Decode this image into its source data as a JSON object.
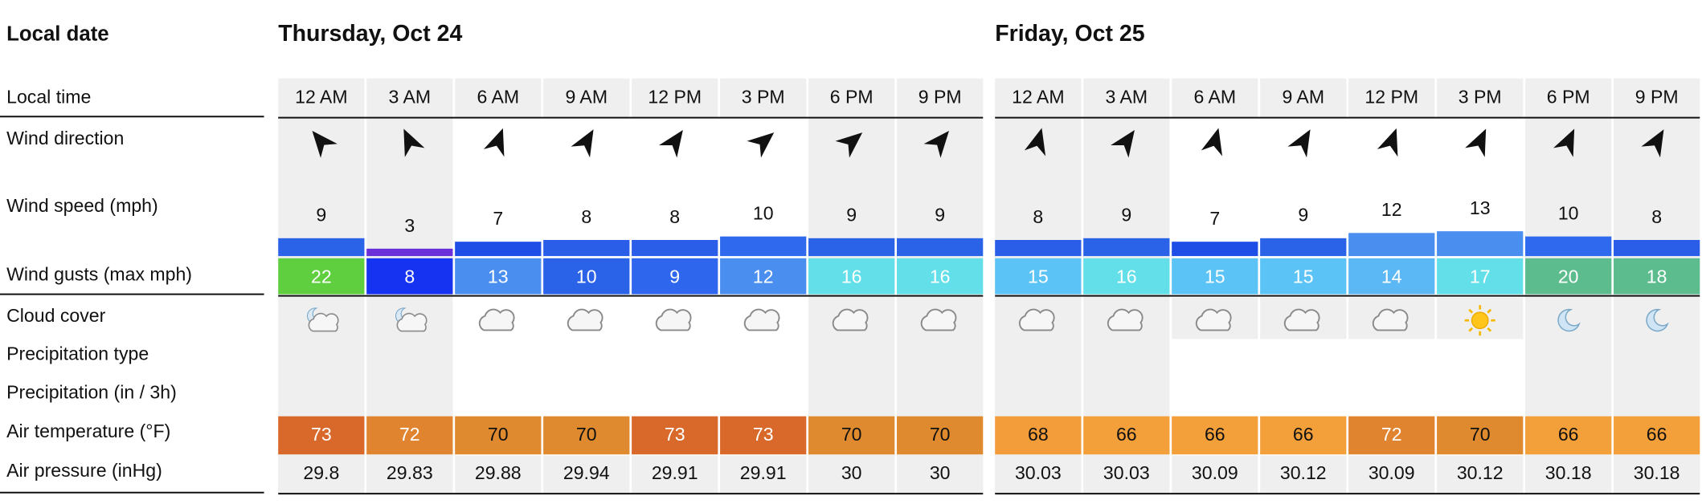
{
  "labels": {
    "local_date": "Local date",
    "local_time": "Local time",
    "wind_direction": "Wind direction",
    "wind_speed": "Wind speed (mph)",
    "wind_gusts": "Wind gusts (max mph)",
    "cloud_cover": "Cloud cover",
    "precip_type": "Precipitation type",
    "precip": "Precipitation (in / 3h)",
    "temperature": "Air temperature (°F)",
    "pressure": "Air pressure (inHg)"
  },
  "days": [
    {
      "date": "Thursday, Oct 24",
      "hours": [
        {
          "time": "12 AM",
          "wind_direction": 320,
          "wind_speed": 9,
          "wind_speed_color": "#2a62e8",
          "wind_gusts": 22,
          "gust_color": "#5fcf3f",
          "cloud_cover": "partly-cloudy-night",
          "temperature": 73,
          "temperature_color": "#d9692a",
          "pressure": 29.8
        },
        {
          "time": "3 AM",
          "wind_direction": 335,
          "wind_speed": 3,
          "wind_speed_color": "#6a2fd8",
          "wind_gusts": 8,
          "gust_color": "#1533f0",
          "cloud_cover": "partly-cloudy-night",
          "temperature": 72,
          "temperature_color": "#e08430",
          "pressure": 29.83
        },
        {
          "time": "6 AM",
          "wind_direction": 20,
          "wind_speed": 7,
          "wind_speed_color": "#1f4ee6",
          "wind_gusts": 13,
          "gust_color": "#4a8ff0",
          "cloud_cover": "cloudy",
          "temperature": 70,
          "temperature_color": "#e08a30",
          "pressure": 29.88
        },
        {
          "time": "9 AM",
          "wind_direction": 30,
          "wind_speed": 8,
          "wind_speed_color": "#2a5ee8",
          "wind_gusts": 10,
          "gust_color": "#2a62e8",
          "cloud_cover": "cloudy",
          "temperature": 70,
          "temperature_color": "#e08a30",
          "pressure": 29.94
        },
        {
          "time": "12 PM",
          "wind_direction": 35,
          "wind_speed": 8,
          "wind_speed_color": "#2a5ee8",
          "wind_gusts": 9,
          "gust_color": "#2f66ee",
          "cloud_cover": "cloudy",
          "temperature": 73,
          "temperature_color": "#d9692a",
          "pressure": 29.91
        },
        {
          "time": "3 PM",
          "wind_direction": 50,
          "wind_speed": 10,
          "wind_speed_color": "#2f6aee",
          "wind_gusts": 12,
          "gust_color": "#4a8ff0",
          "cloud_cover": "cloudy",
          "temperature": 73,
          "temperature_color": "#d9692a",
          "pressure": 29.91
        },
        {
          "time": "6 PM",
          "wind_direction": 50,
          "wind_speed": 9,
          "wind_speed_color": "#2a62e8",
          "wind_gusts": 16,
          "gust_color": "#62dfe8",
          "cloud_cover": "cloudy",
          "temperature": 70,
          "temperature_color": "#e08a30",
          "pressure": 30
        },
        {
          "time": "9 PM",
          "wind_direction": 40,
          "wind_speed": 9,
          "wind_speed_color": "#2a62e8",
          "wind_gusts": 16,
          "gust_color": "#62dfe8",
          "cloud_cover": "cloudy",
          "temperature": 70,
          "temperature_color": "#e08a30",
          "pressure": 30
        }
      ]
    },
    {
      "date": "Friday, Oct 25",
      "hours": [
        {
          "time": "12 AM",
          "wind_direction": 15,
          "wind_speed": 8,
          "wind_speed_color": "#2a5ee8",
          "wind_gusts": 15,
          "gust_color": "#5bc3f5",
          "cloud_cover": "cloudy",
          "temperature": 68,
          "temperature_color": "#f39c3a",
          "pressure": 30.03
        },
        {
          "time": "3 AM",
          "wind_direction": 35,
          "wind_speed": 9,
          "wind_speed_color": "#2a62e8",
          "wind_gusts": 16,
          "gust_color": "#62dfe8",
          "cloud_cover": "cloudy",
          "temperature": 66,
          "temperature_color": "#f3a03a",
          "pressure": 30.03
        },
        {
          "time": "6 AM",
          "wind_direction": 15,
          "wind_speed": 7,
          "wind_speed_color": "#1f4ee6",
          "wind_gusts": 15,
          "gust_color": "#5bc3f5",
          "cloud_cover": "cloudy",
          "temperature": 66,
          "temperature_color": "#f3a03a",
          "pressure": 30.09
        },
        {
          "time": "9 AM",
          "wind_direction": 30,
          "wind_speed": 9,
          "wind_speed_color": "#2a62e8",
          "wind_gusts": 15,
          "gust_color": "#5bc3f5",
          "cloud_cover": "cloudy",
          "temperature": 66,
          "temperature_color": "#f3a03a",
          "pressure": 30.12
        },
        {
          "time": "12 PM",
          "wind_direction": 20,
          "wind_speed": 12,
          "wind_speed_color": "#4a8ff0",
          "wind_gusts": 14,
          "gust_color": "#5bb8f5",
          "cloud_cover": "cloudy",
          "temperature": 72,
          "temperature_color": "#e08430",
          "pressure": 30.09
        },
        {
          "time": "3 PM",
          "wind_direction": 25,
          "wind_speed": 13,
          "wind_speed_color": "#4a8ff0",
          "wind_gusts": 17,
          "gust_color": "#62dfe8",
          "cloud_cover": "clear-day",
          "temperature": 70,
          "temperature_color": "#e08a30",
          "pressure": 30.12
        },
        {
          "time": "6 PM",
          "wind_direction": 25,
          "wind_speed": 10,
          "wind_speed_color": "#2f6aee",
          "wind_gusts": 20,
          "gust_color": "#5cbc8e",
          "cloud_cover": "clear-night",
          "temperature": 66,
          "temperature_color": "#f3a03a",
          "pressure": 30.18
        },
        {
          "time": "9 PM",
          "wind_direction": 30,
          "wind_speed": 8,
          "wind_speed_color": "#2a5ee8",
          "wind_gusts": 18,
          "gust_color": "#5cbc8e",
          "cloud_cover": "clear-night",
          "temperature": 66,
          "temperature_color": "#f3a03a",
          "pressure": 30.18
        }
      ]
    }
  ]
}
